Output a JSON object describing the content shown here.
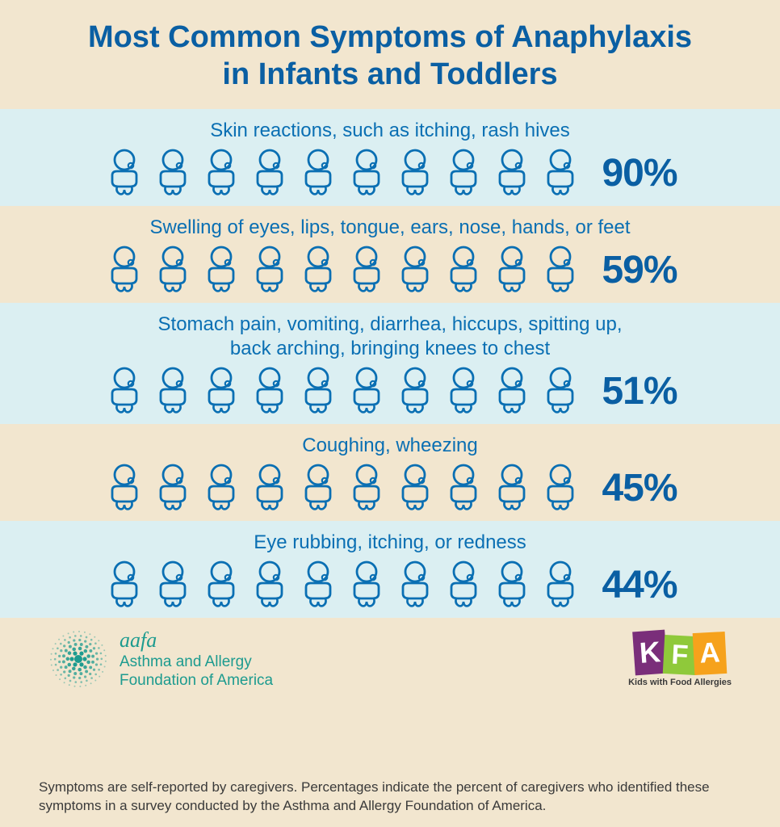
{
  "type": "infographic",
  "colors": {
    "header_bg": "#f2e6cf",
    "row_bg_light": "#dbeff2",
    "row_bg_beige": "#f2e6cf",
    "title_color": "#0a5fa3",
    "label_color": "#0a6fb3",
    "pct_color": "#0a5fa3",
    "icon_stroke": "#0a6fb3",
    "aafa_color": "#1d9b8f",
    "disclaimer_color": "#3a3a3a",
    "kfa_sub_color": "#3a3a3a"
  },
  "typography": {
    "title_fontsize": 38,
    "title_weight": 800,
    "label_fontsize": 24,
    "pct_fontsize": 48,
    "pct_weight": 800,
    "disclaimer_fontsize": 17,
    "aafa_fontsize": 19
  },
  "header": {
    "title_line1": "Most Common Symptoms of Anaphylaxis",
    "title_line2": "in Infants and Toddlers"
  },
  "icon_count": 10,
  "rows": [
    {
      "label": "Skin reactions, such as itching, rash hives",
      "value": "90%",
      "bg": "light"
    },
    {
      "label": "Swelling of eyes, lips, tongue, ears, nose, hands, or feet",
      "value": "59%",
      "bg": "beige"
    },
    {
      "label_line1": "Stomach pain, vomiting, diarrhea, hiccups, spitting up,",
      "label_line2": "back arching, bringing knees to chest",
      "value": "51%",
      "bg": "light"
    },
    {
      "label": "Coughing, wheezing",
      "value": "45%",
      "bg": "beige"
    },
    {
      "label": "Eye rubbing, itching, or redness",
      "value": "44%",
      "bg": "light"
    }
  ],
  "footer": {
    "aafa_script": "aafa",
    "aafa_line1": "Asthma and Allergy",
    "aafa_line2": "Foundation of America",
    "kfa_k": "K",
    "kfa_f": "F",
    "kfa_a": "A",
    "kfa_sub": "Kids with Food Allergies",
    "disclaimer": "Symptoms are self-reported by caregivers. Percentages indicate the percent of caregivers who identified these symptoms in a survey conducted by the Asthma and Allergy Foundation of America."
  }
}
